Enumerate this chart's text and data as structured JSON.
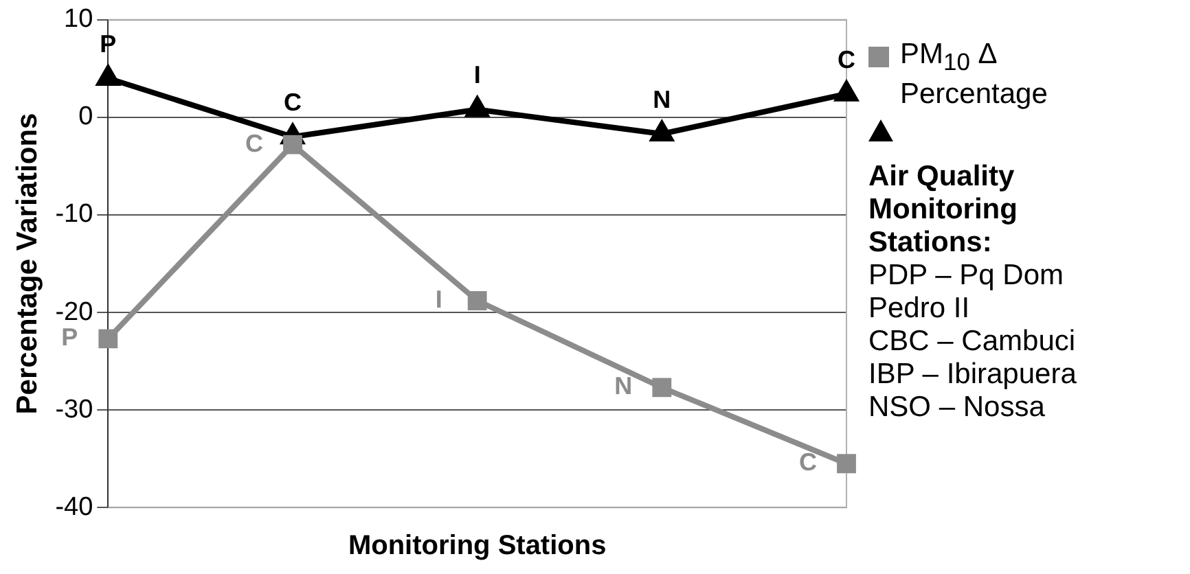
{
  "chart_data": {
    "type": "line",
    "xlabel": "Monitoring Stations",
    "ylabel": "Percentage Variations",
    "categories": [
      null,
      null,
      null,
      null,
      null
    ],
    "series": [
      {
        "name": "PM$_{10}$ Δ Percentage",
        "color": "#8c8c8c",
        "marker": "square",
        "values": [
          -22.7,
          -2.8,
          -18.8,
          -27.7,
          -35.5
        ],
        "value_labels": [
          "P",
          "C",
          "I",
          "N",
          "C"
        ]
      },
      {
        "color": "#000000",
        "marker": "triangle",
        "values": [
          4,
          -2,
          0.8,
          -1.7,
          2.4
        ],
        "value_labels": [
          "P",
          "C",
          "I",
          "N",
          "C"
        ]
      }
    ],
    "ylim": [
      -40,
      10
    ],
    "yticks": [
      -40,
      -30,
      -20,
      -10,
      0,
      10
    ],
    "grid": "y",
    "legend": "right",
    "annotations": [
      "Air Quality Monitoring Stations:",
      "PDP – Pq Dom Pedro II",
      "CBC – Cambuci",
      "IBP – Ibirapuera",
      "NSO – Nossa"
    ]
  }
}
